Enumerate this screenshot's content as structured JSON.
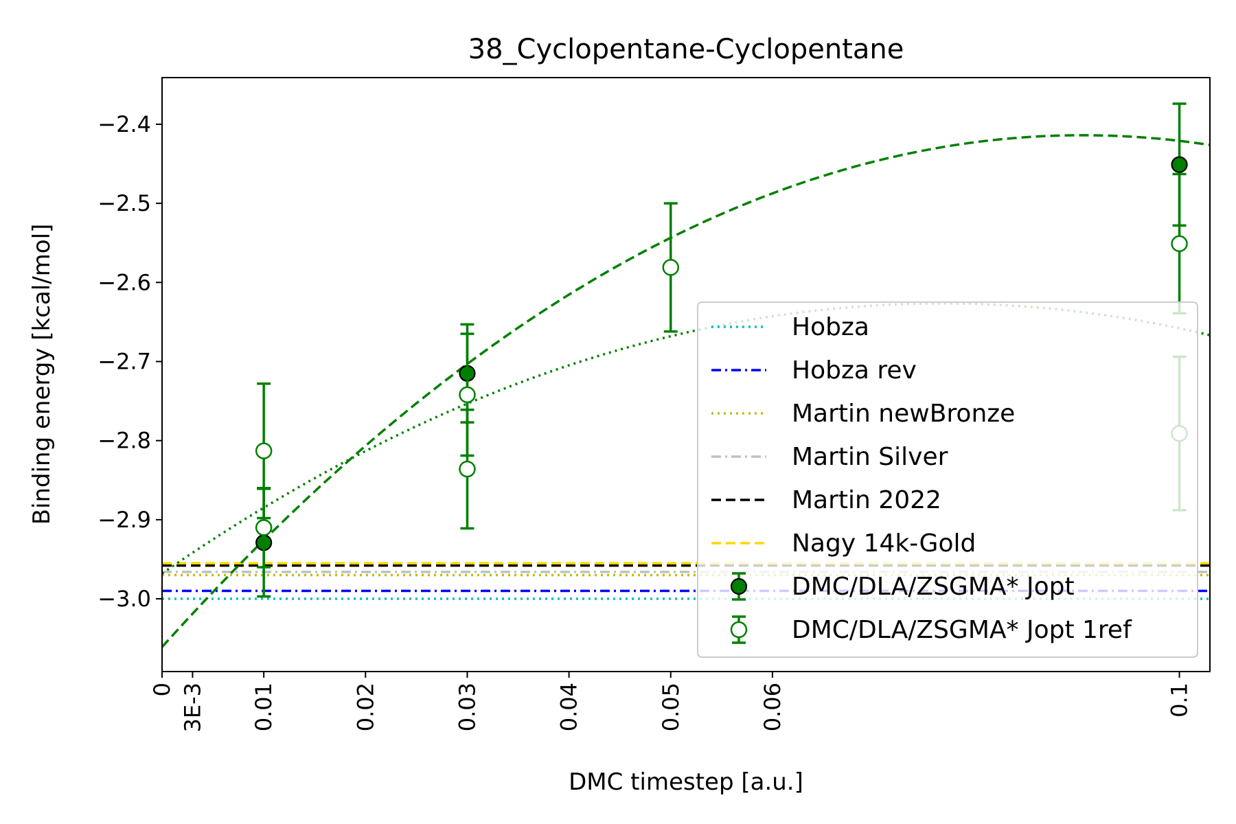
{
  "chart_data": {
    "type": "scatter",
    "title": "38_Cyclopentane-Cyclopentane",
    "xlabel": "DMC timestep [a.u.]",
    "ylabel": "Binding energy [kcal/mol]",
    "xlim": [
      0,
      0.103
    ],
    "ylim": [
      -3.092,
      -2.341
    ],
    "x_ticks": [
      {
        "value": 0,
        "label": "0"
      },
      {
        "value": 0.003,
        "label": "3E-3"
      },
      {
        "value": 0.01,
        "label": "0.01"
      },
      {
        "value": 0.02,
        "label": "0.02"
      },
      {
        "value": 0.03,
        "label": "0.03"
      },
      {
        "value": 0.04,
        "label": "0.04"
      },
      {
        "value": 0.05,
        "label": "0.05"
      },
      {
        "value": 0.06,
        "label": "0.06"
      },
      {
        "value": 0.1,
        "label": "0.1"
      }
    ],
    "y_ticks": [
      {
        "value": -2.4,
        "label": "−2.4"
      },
      {
        "value": -2.5,
        "label": "−2.5"
      },
      {
        "value": -2.6,
        "label": "−2.6"
      },
      {
        "value": -2.7,
        "label": "−2.7"
      },
      {
        "value": -2.8,
        "label": "−2.8"
      },
      {
        "value": -2.9,
        "label": "−2.9"
      },
      {
        "value": -3.0,
        "label": "−3.0"
      }
    ],
    "reference_lines": [
      {
        "name": "Hobza",
        "y": -3.0,
        "color": "#00bfbf",
        "dash": "dotted"
      },
      {
        "name": "Hobza rev",
        "y": -2.99,
        "color": "#0000ff",
        "dash": "dashdot"
      },
      {
        "name": "Martin newBronze",
        "y": -2.97,
        "color": "#bfbf00",
        "dash": "dotted"
      },
      {
        "name": "Martin Silver",
        "y": -2.966,
        "color": "#c0c0c0",
        "dash": "dashdot"
      },
      {
        "name": "Martin 2022",
        "y": -2.958,
        "color": "#000000",
        "dash": "dashed"
      },
      {
        "name": "Nagy 14k-Gold",
        "y": -2.955,
        "color": "#ffd700",
        "dash": "dashed"
      }
    ],
    "series": [
      {
        "name": "DMC/DLA/ZSGMA* Jopt",
        "color": "#008000",
        "marker": "filled-circle",
        "points": [
          {
            "x": 0.01,
            "y": -2.929,
            "err": 0.068
          },
          {
            "x": 0.03,
            "y": -2.715,
            "err": 0.062
          },
          {
            "x": 0.1,
            "y": -2.451,
            "err": 0.077
          }
        ],
        "fit": {
          "style": "dashed",
          "coefficients": [
            -3.061,
            14.3,
            -79.0
          ]
        }
      },
      {
        "name": "DMC/DLA/ZSGMA* Jopt 1ref",
        "color": "#008000",
        "marker": "open-circle",
        "points": [
          {
            "x": 0.01,
            "y": -2.813,
            "err": 0.085
          },
          {
            "x": 0.01,
            "y": -2.91,
            "err": 0.05
          },
          {
            "x": 0.03,
            "y": -2.742,
            "err": 0.077
          },
          {
            "x": 0.03,
            "y": -2.836,
            "err": 0.075
          },
          {
            "x": 0.05,
            "y": -2.581,
            "err": 0.081
          },
          {
            "x": 0.1,
            "y": -2.551,
            "err": 0.088
          },
          {
            "x": 0.1,
            "y": -2.791,
            "err": 0.097
          }
        ],
        "fit": {
          "style": "dotted",
          "coefficients": [
            -2.968,
            8.9,
            -58.0
          ]
        }
      }
    ],
    "legend": {
      "position": "lower right"
    },
    "grid": false
  }
}
